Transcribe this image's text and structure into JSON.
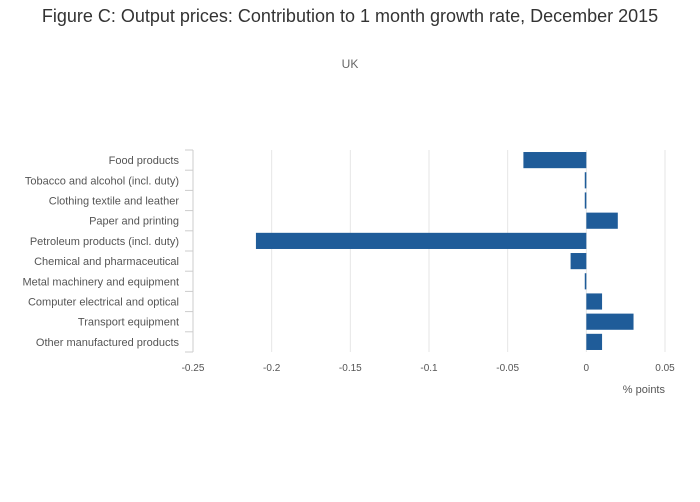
{
  "chart_data": {
    "type": "bar",
    "orientation": "horizontal",
    "title": "Figure C: Output prices: Contribution to 1 month growth rate, December 2015",
    "subtitle": "UK",
    "xlabel": "% points",
    "ylabel": "",
    "xlim": [
      -0.25,
      0.05
    ],
    "xticks": [
      -0.25,
      -0.2,
      -0.15,
      -0.1,
      -0.05,
      0,
      0.05
    ],
    "xtick_labels": [
      "-0.25",
      "-0.2",
      "-0.15",
      "-0.1",
      "-0.05",
      "0",
      "0.05"
    ],
    "grid": true,
    "bar_color": "#1f5c99",
    "categories": [
      "Food products",
      "Tobacco and alcohol (incl. duty)",
      "Clothing textile and leather",
      "Paper and printing",
      "Petroleum products (incl. duty)",
      "Chemical and pharmaceutical",
      "Metal machinery and equipment",
      "Computer electrical and optical",
      "Transport equipment",
      "Other manufactured products"
    ],
    "values": [
      -0.04,
      -0.001,
      -0.001,
      0.02,
      -0.21,
      -0.01,
      -0.001,
      0.01,
      0.03,
      0.01
    ]
  }
}
